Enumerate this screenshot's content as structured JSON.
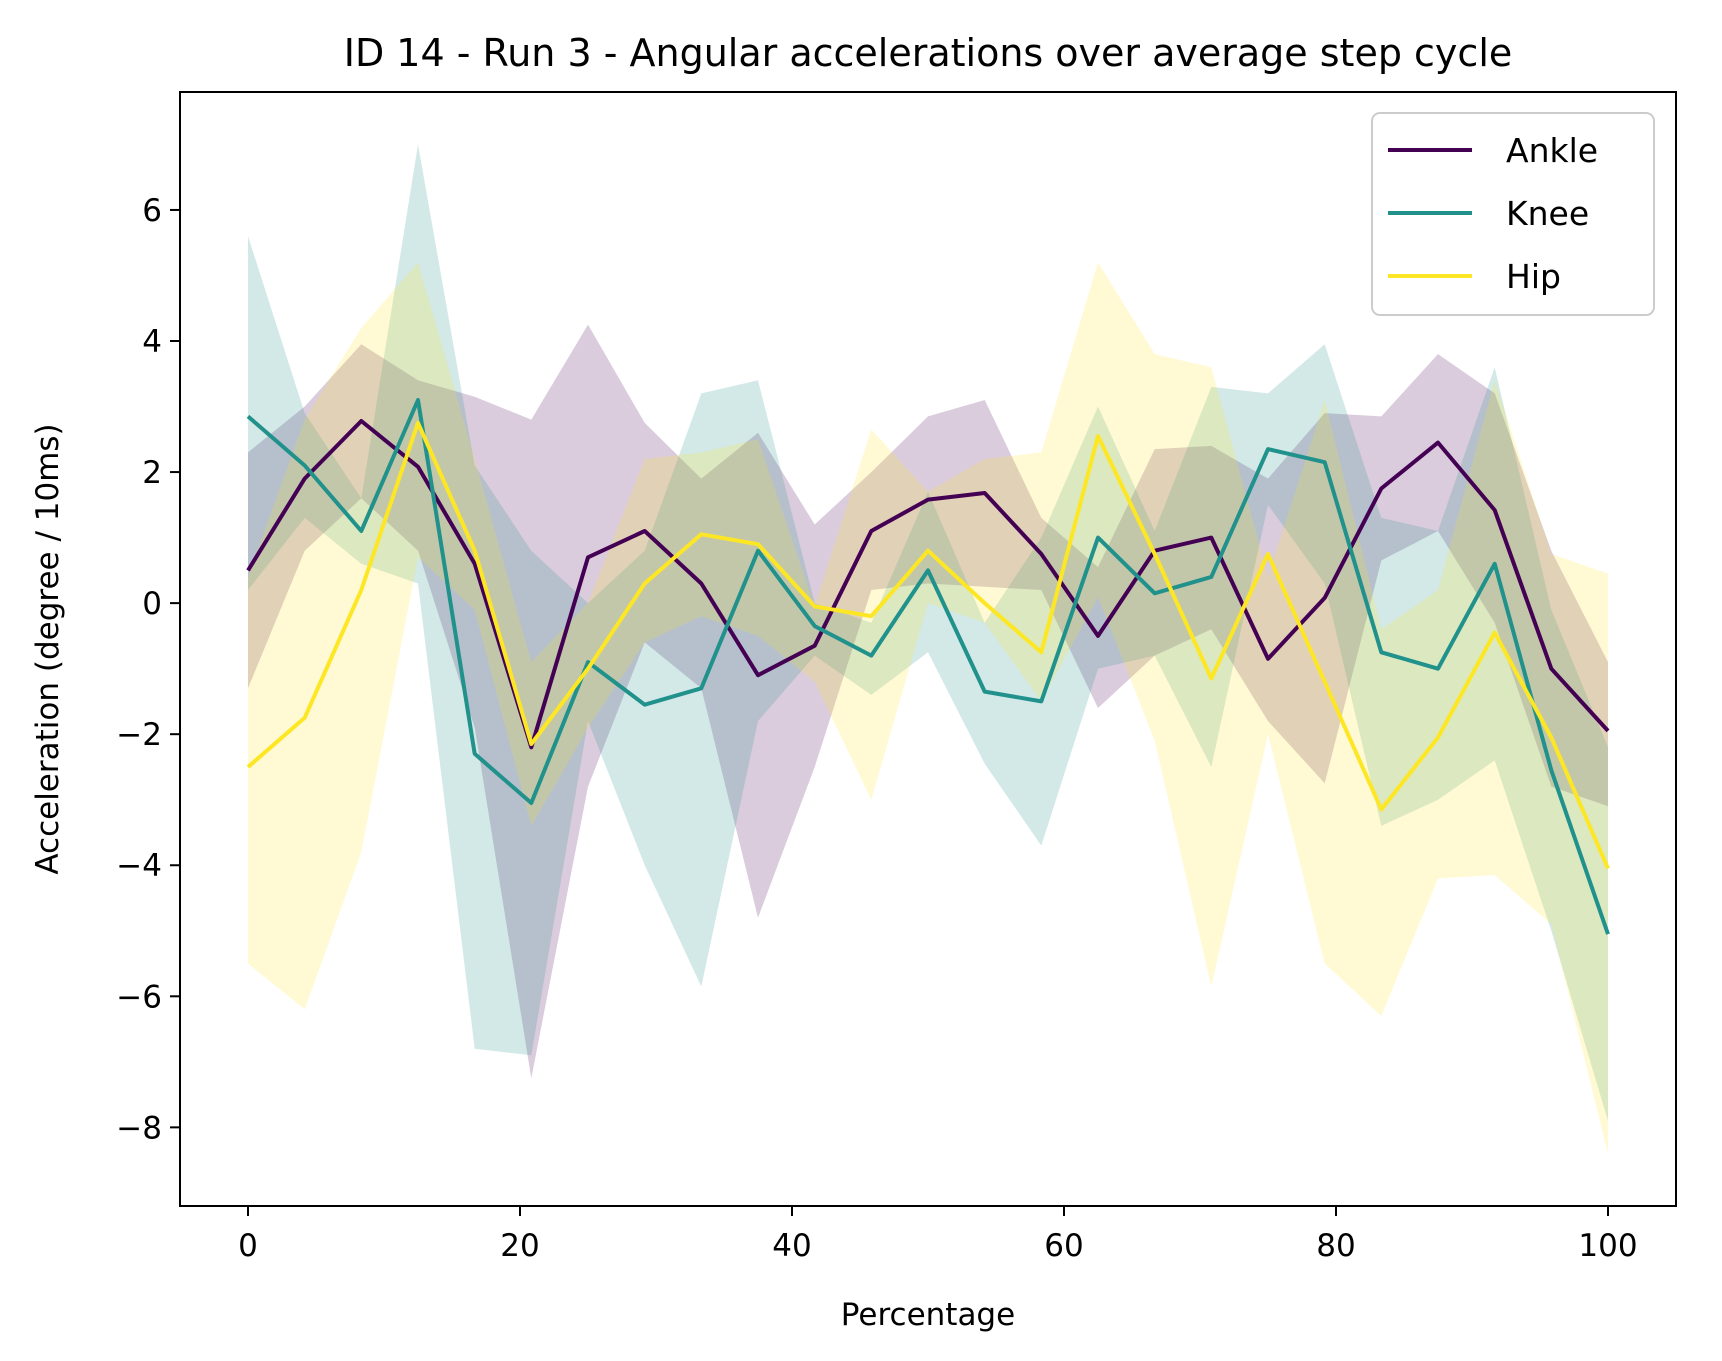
{
  "chart_data": {
    "type": "line",
    "title": "ID 14 - Run 3 - Angular accelerations over average step cycle",
    "xlabel": "Percentage",
    "ylabel": "Acceleration (degree / 10ms)",
    "xlim": [
      -5,
      105
    ],
    "ylim": [
      -9.2,
      7.8
    ],
    "xticks": [
      0,
      20,
      40,
      60,
      80,
      100
    ],
    "xtick_labels": [
      "0",
      "20",
      "40",
      "60",
      "80",
      "100"
    ],
    "yticks": [
      -8,
      -6,
      -4,
      -2,
      0,
      2,
      4,
      6
    ],
    "ytick_labels": [
      "−8",
      "−6",
      "−4",
      "−2",
      "0",
      "2",
      "4",
      "6"
    ],
    "grid": false,
    "legend_position": "top-right",
    "shaded_band": "mean ± deviation per series",
    "x": [
      0,
      4.17,
      8.33,
      12.5,
      16.67,
      20.83,
      25,
      29.17,
      33.33,
      37.5,
      41.67,
      45.83,
      50,
      54.17,
      58.33,
      62.5,
      66.67,
      70.83,
      75,
      79.17,
      83.33,
      87.5,
      91.67,
      95.83,
      100
    ],
    "series": [
      {
        "name": "Ankle",
        "color": "#440154",
        "values": [
          0.5,
          1.9,
          2.78,
          2.08,
          0.6,
          -2.2,
          0.7,
          1.1,
          0.3,
          -1.1,
          -0.65,
          1.1,
          1.58,
          1.68,
          0.75,
          -0.5,
          0.8,
          1.0,
          -0.85,
          0.08,
          1.75,
          2.45,
          1.42,
          -1.0,
          -1.95
        ],
        "upper": [
          2.3,
          3.0,
          3.95,
          3.4,
          3.15,
          2.8,
          4.25,
          2.75,
          1.9,
          2.6,
          1.2,
          2.0,
          2.85,
          3.1,
          1.3,
          0.55,
          2.35,
          2.4,
          1.9,
          2.9,
          2.85,
          3.8,
          3.2,
          0.8,
          -0.9
        ],
        "lower": [
          -1.3,
          0.8,
          1.6,
          0.8,
          -1.9,
          -7.25,
          -2.8,
          -0.6,
          -1.3,
          -4.8,
          -2.5,
          0.2,
          0.3,
          0.25,
          0.2,
          -1.6,
          -0.8,
          -0.4,
          -1.8,
          -2.75,
          0.65,
          1.1,
          -0.3,
          -2.8,
          -3.1
        ]
      },
      {
        "name": "Knee",
        "color": "#21918c",
        "values": [
          2.85,
          2.1,
          1.1,
          3.1,
          -2.3,
          -3.05,
          -0.9,
          -1.55,
          -1.3,
          0.8,
          -0.35,
          -0.8,
          0.5,
          -1.35,
          -1.5,
          1.0,
          0.15,
          0.4,
          2.35,
          2.15,
          -0.75,
          -1.0,
          0.6,
          -2.55,
          -5.05
        ],
        "upper": [
          5.6,
          2.9,
          1.6,
          7.0,
          2.1,
          0.8,
          0.0,
          0.8,
          3.2,
          3.4,
          0.0,
          -0.3,
          1.7,
          -0.3,
          1.0,
          3.0,
          1.1,
          3.3,
          3.2,
          3.95,
          1.3,
          1.1,
          3.6,
          -0.1,
          -2.2
        ],
        "lower": [
          0.2,
          1.3,
          0.6,
          0.3,
          -6.8,
          -6.9,
          -1.8,
          -4.0,
          -5.85,
          -1.8,
          -0.8,
          -1.4,
          -0.75,
          -2.45,
          -3.7,
          -1.0,
          -0.8,
          -2.5,
          1.5,
          0.3,
          -3.4,
          -3.0,
          -2.4,
          -5.0,
          -7.9
        ]
      },
      {
        "name": "Hip",
        "color": "#fde725",
        "values": [
          -2.5,
          -1.75,
          0.2,
          2.75,
          0.8,
          -2.15,
          -1.0,
          0.3,
          1.05,
          0.9,
          -0.05,
          -0.2,
          0.8,
          0.0,
          -0.75,
          2.55,
          0.75,
          -1.15,
          0.75,
          -1.2,
          -3.15,
          -2.05,
          -0.45,
          -2.05,
          -4.05
        ],
        "upper": [
          0.4,
          2.8,
          4.2,
          5.2,
          2.2,
          -0.9,
          0.0,
          2.2,
          2.3,
          2.5,
          -0.05,
          2.65,
          1.7,
          2.2,
          2.3,
          5.2,
          3.8,
          3.6,
          0.4,
          3.1,
          -0.4,
          0.2,
          3.4,
          0.75,
          0.45
        ],
        "lower": [
          -5.5,
          -6.2,
          -3.8,
          0.7,
          -0.1,
          -3.4,
          -1.9,
          -0.6,
          -0.2,
          -0.5,
          -1.2,
          -3.0,
          0.0,
          -0.3,
          -1.5,
          0.1,
          -2.1,
          -5.85,
          -2.0,
          -5.5,
          -6.3,
          -4.2,
          -4.15,
          -4.9,
          -8.4
        ]
      }
    ]
  }
}
